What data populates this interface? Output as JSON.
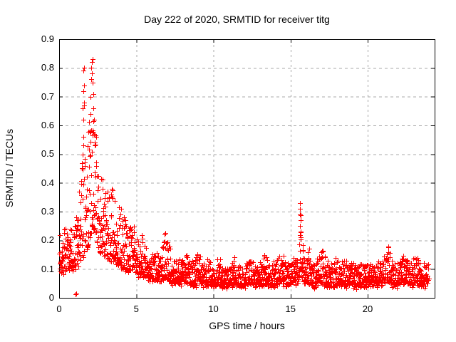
{
  "chart_data": {
    "type": "scatter",
    "title": "Day 222 of 2020, SRMTID for receiver titg",
    "xlabel": "GPS time / hours",
    "ylabel": "SRMTID / TECUs",
    "series_name": "SRMTID",
    "xlim": [
      0,
      24.34
    ],
    "ylim": [
      0,
      0.9
    ],
    "xticks": [
      0,
      5,
      10,
      15,
      20
    ],
    "xtick_labels": [
      "0",
      "5",
      "10",
      "15",
      "20"
    ],
    "yticks": [
      0,
      0.1,
      0.2,
      0.3,
      0.4,
      0.5,
      0.6,
      0.7,
      0.8,
      0.9
    ],
    "ytick_labels": [
      "0",
      "0.1",
      "0.2",
      "0.3",
      "0.4",
      "0.5",
      "0.6",
      "0.7",
      "0.8",
      "0.9"
    ],
    "grid": true,
    "legend": "none",
    "marker": "plus",
    "marker_color": "#ff0000",
    "grid_color": "#a8a8a8",
    "axis_color": "#000000",
    "background": "#ffffff",
    "envelope_format": "[hour, min_value, max_value]",
    "envelope": [
      [
        0.0,
        0.08,
        0.25
      ],
      [
        0.3,
        0.09,
        0.24
      ],
      [
        0.6,
        0.1,
        0.24
      ],
      [
        0.9,
        0.1,
        0.28
      ],
      [
        1.2,
        0.11,
        0.32
      ],
      [
        1.45,
        0.13,
        0.45
      ],
      [
        1.6,
        0.14,
        0.78
      ],
      [
        1.75,
        0.15,
        0.5
      ],
      [
        1.9,
        0.18,
        0.6
      ],
      [
        2.1,
        0.22,
        0.8
      ],
      [
        2.25,
        0.24,
        0.85
      ],
      [
        2.4,
        0.2,
        0.6
      ],
      [
        2.6,
        0.16,
        0.4
      ],
      [
        2.9,
        0.14,
        0.42
      ],
      [
        3.2,
        0.13,
        0.38
      ],
      [
        3.45,
        0.13,
        0.4
      ],
      [
        3.7,
        0.12,
        0.3
      ],
      [
        3.95,
        0.11,
        0.33
      ],
      [
        4.2,
        0.1,
        0.28
      ],
      [
        4.5,
        0.09,
        0.24
      ],
      [
        4.8,
        0.1,
        0.26
      ],
      [
        5.1,
        0.08,
        0.2
      ],
      [
        5.4,
        0.08,
        0.22
      ],
      [
        5.7,
        0.07,
        0.16
      ],
      [
        6.0,
        0.06,
        0.15
      ],
      [
        6.3,
        0.06,
        0.17
      ],
      [
        6.6,
        0.06,
        0.14
      ],
      [
        6.9,
        0.07,
        0.24
      ],
      [
        7.1,
        0.06,
        0.22
      ],
      [
        7.4,
        0.05,
        0.14
      ],
      [
        7.7,
        0.05,
        0.13
      ],
      [
        8.0,
        0.05,
        0.16
      ],
      [
        8.3,
        0.05,
        0.17
      ],
      [
        8.6,
        0.04,
        0.12
      ],
      [
        9.0,
        0.05,
        0.17
      ],
      [
        9.3,
        0.04,
        0.12
      ],
      [
        9.6,
        0.04,
        0.14
      ],
      [
        10.0,
        0.04,
        0.11
      ],
      [
        10.3,
        0.04,
        0.14
      ],
      [
        10.7,
        0.04,
        0.12
      ],
      [
        11.0,
        0.04,
        0.11
      ],
      [
        11.4,
        0.05,
        0.16
      ],
      [
        11.7,
        0.04,
        0.12
      ],
      [
        12.0,
        0.04,
        0.11
      ],
      [
        12.3,
        0.05,
        0.14
      ],
      [
        12.7,
        0.04,
        0.12
      ],
      [
        13.0,
        0.04,
        0.12
      ],
      [
        13.4,
        0.05,
        0.16
      ],
      [
        13.7,
        0.04,
        0.13
      ],
      [
        14.0,
        0.04,
        0.12
      ],
      [
        14.4,
        0.06,
        0.16
      ],
      [
        14.7,
        0.04,
        0.12
      ],
      [
        15.0,
        0.05,
        0.13
      ],
      [
        15.3,
        0.05,
        0.14
      ],
      [
        15.5,
        0.06,
        0.13
      ],
      [
        15.62,
        0.1,
        0.33
      ],
      [
        15.75,
        0.07,
        0.2
      ],
      [
        15.95,
        0.05,
        0.13
      ],
      [
        16.2,
        0.05,
        0.18
      ],
      [
        16.5,
        0.04,
        0.12
      ],
      [
        16.8,
        0.05,
        0.13
      ],
      [
        17.0,
        0.05,
        0.18
      ],
      [
        17.3,
        0.04,
        0.13
      ],
      [
        17.6,
        0.04,
        0.12
      ],
      [
        17.9,
        0.04,
        0.13
      ],
      [
        18.2,
        0.05,
        0.17
      ],
      [
        18.5,
        0.04,
        0.12
      ],
      [
        18.8,
        0.05,
        0.15
      ],
      [
        19.1,
        0.04,
        0.12
      ],
      [
        19.4,
        0.04,
        0.11
      ],
      [
        19.7,
        0.04,
        0.12
      ],
      [
        20.0,
        0.05,
        0.13
      ],
      [
        20.4,
        0.04,
        0.12
      ],
      [
        20.7,
        0.05,
        0.13
      ],
      [
        21.0,
        0.05,
        0.14
      ],
      [
        21.3,
        0.06,
        0.18
      ],
      [
        21.6,
        0.04,
        0.13
      ],
      [
        21.9,
        0.04,
        0.12
      ],
      [
        22.2,
        0.05,
        0.15
      ],
      [
        22.5,
        0.05,
        0.13
      ],
      [
        22.8,
        0.04,
        0.14
      ],
      [
        23.1,
        0.05,
        0.15
      ],
      [
        23.4,
        0.05,
        0.13
      ],
      [
        23.7,
        0.04,
        0.12
      ],
      [
        23.95,
        0.05,
        0.12
      ]
    ],
    "outliers_format": "[hour, value]",
    "outliers": [
      [
        1.07,
        0.012
      ],
      [
        1.1,
        0.016
      ],
      [
        1.54,
        0.66
      ],
      [
        1.56,
        0.72
      ],
      [
        1.57,
        0.62
      ],
      [
        1.58,
        0.79
      ],
      [
        1.59,
        0.56
      ],
      [
        1.6,
        0.8
      ],
      [
        1.61,
        0.74
      ],
      [
        1.63,
        0.68
      ],
      [
        1.98,
        0.58
      ],
      [
        2.02,
        0.64
      ],
      [
        2.05,
        0.7
      ],
      [
        2.08,
        0.76
      ],
      [
        2.1,
        0.8
      ],
      [
        2.12,
        0.82
      ],
      [
        2.14,
        0.78
      ],
      [
        2.16,
        0.83
      ],
      [
        2.18,
        0.75
      ],
      [
        2.2,
        0.71
      ],
      [
        2.22,
        0.66
      ],
      [
        2.25,
        0.62
      ],
      [
        2.28,
        0.57
      ],
      [
        2.32,
        0.53
      ],
      [
        15.6,
        0.33
      ],
      [
        15.61,
        0.25
      ],
      [
        15.62,
        0.31
      ],
      [
        15.63,
        0.29
      ],
      [
        15.64,
        0.23
      ],
      [
        15.65,
        0.27
      ],
      [
        15.66,
        0.21
      ]
    ],
    "sampling": {
      "count": 2300,
      "start": 0.02,
      "end": 23.95,
      "bias": 1.8,
      "jitter": 0.012,
      "seed": 20200809
    }
  }
}
